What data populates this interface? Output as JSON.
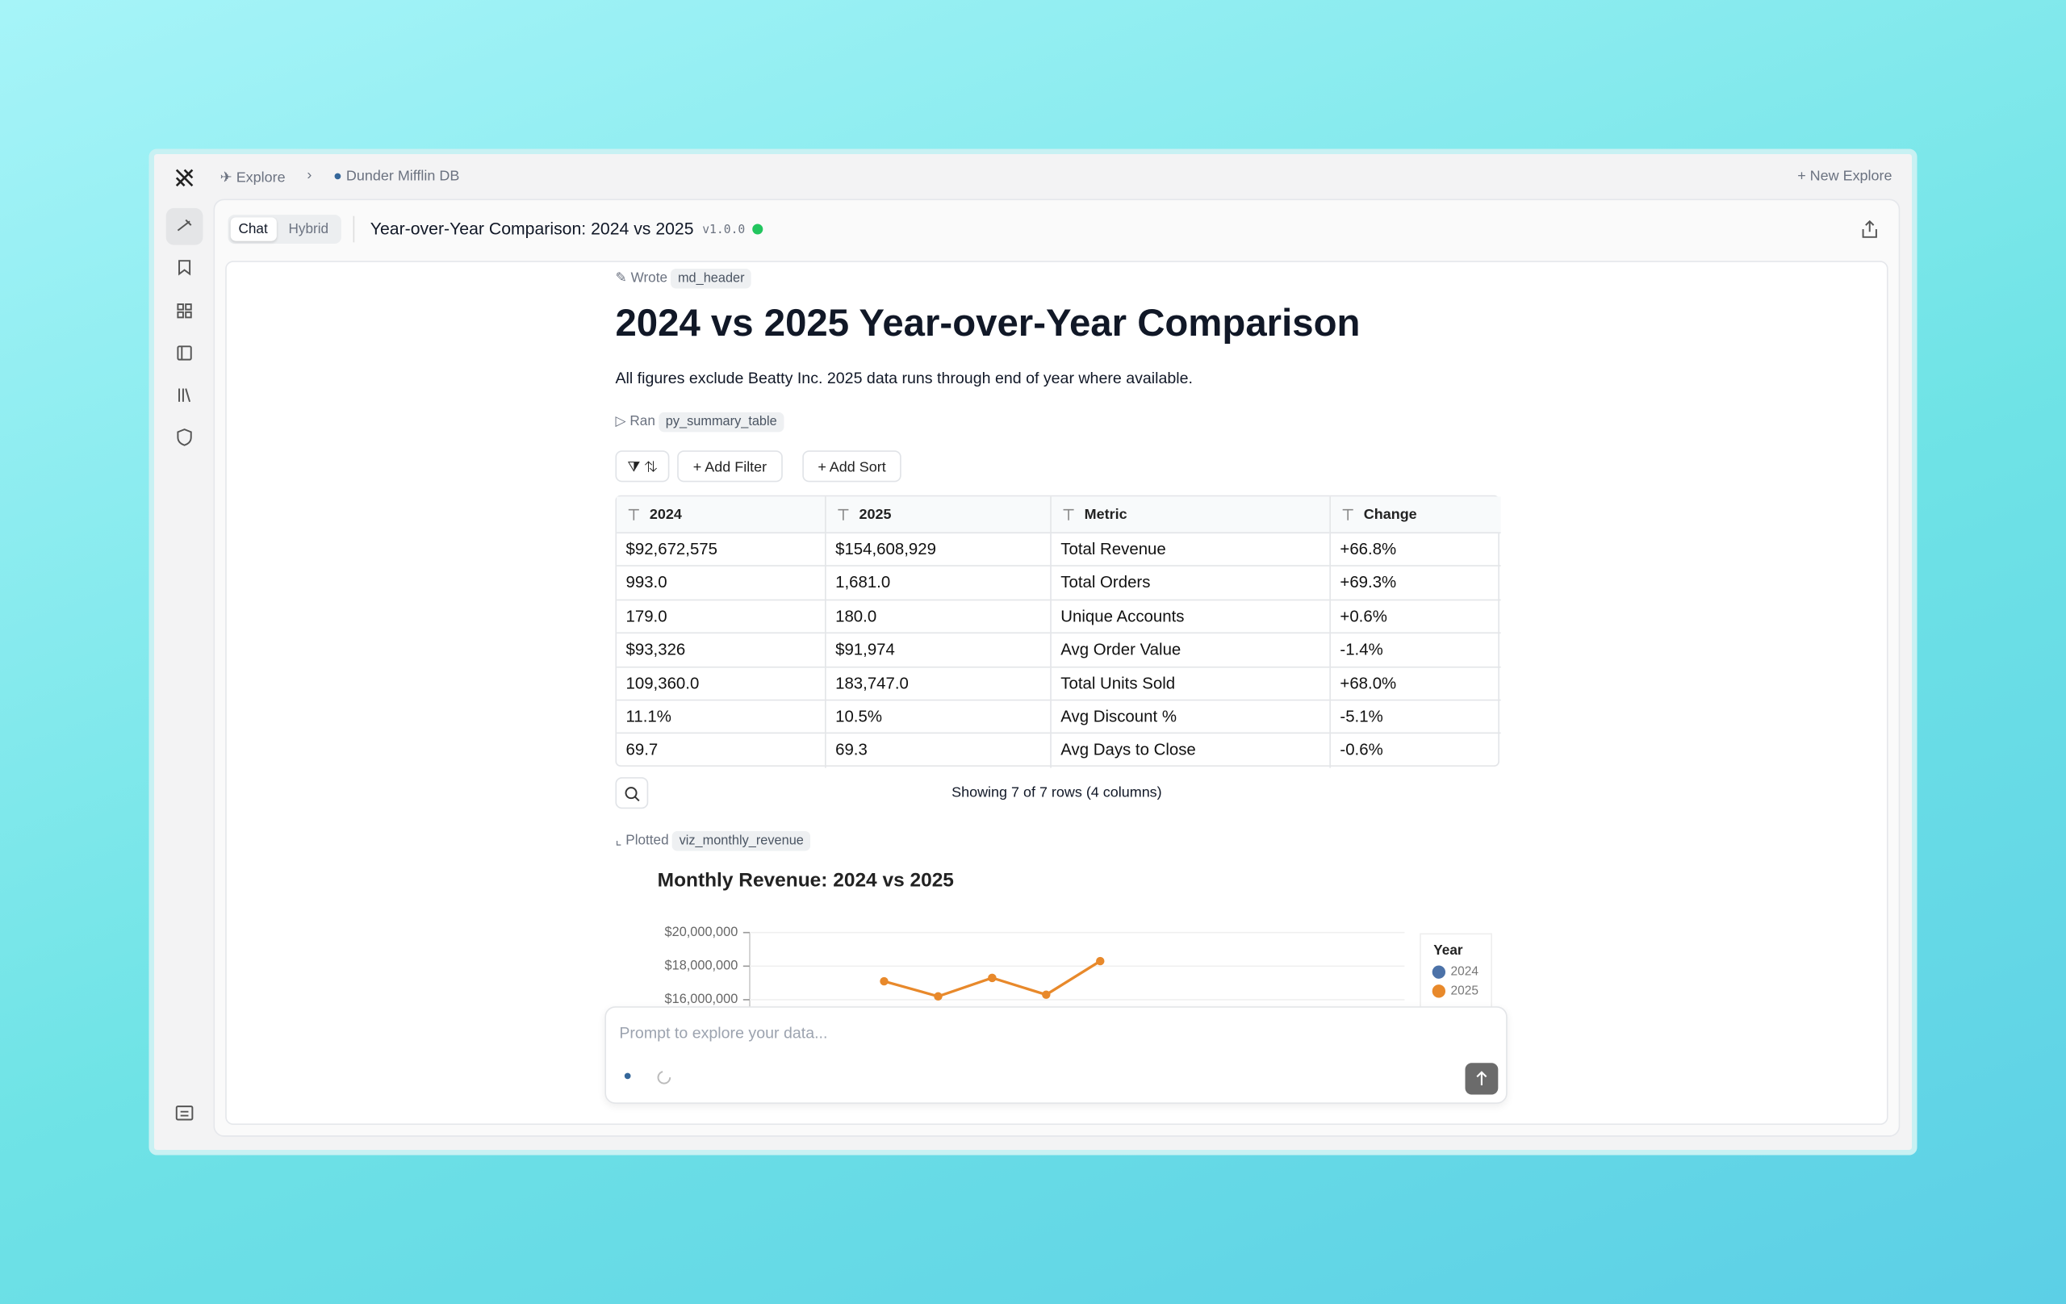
{
  "nav": {
    "breadcrumbs": [
      "Explore",
      "Dunder Mifflin DB"
    ],
    "new_explore": "New Explore"
  },
  "toolbar": {
    "tabs": [
      "Chat",
      "Hybrid"
    ],
    "title": "Year-over-Year Comparison: 2024 vs 2025",
    "version": "v1.0.0"
  },
  "cells": {
    "header_step": {
      "verb": "Wrote",
      "name": "md_header"
    },
    "heading": "2024 vs 2025 Year-over-Year Comparison",
    "paragraph": "All figures exclude Beatty Inc. 2025 data runs through end of year where available.",
    "table_step": {
      "verb": "Ran",
      "name": "py_summary_table"
    },
    "buttons": [
      "Add Filter",
      "Add Sort"
    ],
    "table": {
      "columns": [
        "2024",
        "2025",
        "Metric",
        "Change"
      ],
      "rows": [
        [
          "$92,672,575",
          "$154,608,929",
          "Total Revenue",
          "+66.8%"
        ],
        [
          "993.0",
          "1,681.0",
          "Total Orders",
          "+69.3%"
        ],
        [
          "179.0",
          "180.0",
          "Unique Accounts",
          "+0.6%"
        ],
        [
          "$93,326",
          "$91,974",
          "Avg Order Value",
          "-1.4%"
        ],
        [
          "109,360.0",
          "183,747.0",
          "Total Units Sold",
          "+68.0%"
        ],
        [
          "11.1%",
          "10.5%",
          "Avg Discount %",
          "-5.1%"
        ],
        [
          "69.7",
          "69.3",
          "Avg Days to Close",
          "-0.6%"
        ]
      ],
      "footer": "Showing 7 of 7 rows (4 columns)"
    },
    "chart_step": {
      "verb": "Plotted",
      "name": "viz_monthly_revenue"
    }
  },
  "chart_data": {
    "type": "line",
    "title": "Monthly Revenue: 2024 vs 2025",
    "legend_title": "Year",
    "legend": "top-right",
    "ylim": [
      14000000,
      20000000
    ],
    "yticks": [
      {
        "value": 16000000,
        "label": "$16,000,000"
      },
      {
        "value": 18000000,
        "label": "$18,000,000"
      },
      {
        "value": 20000000,
        "label": "$20,000,000"
      }
    ],
    "series": [
      {
        "name": "2024",
        "color": "#4c72a8",
        "values": [
          null,
          null,
          null,
          null,
          null,
          null,
          null,
          null,
          null,
          null,
          null,
          null
        ]
      },
      {
        "name": "2025",
        "color": "#e8892b",
        "values": [
          null,
          null,
          17100000,
          16200000,
          17300000,
          16300000,
          18300000,
          null,
          null,
          null,
          null,
          null
        ]
      }
    ]
  },
  "prompt": {
    "placeholder": "Prompt to explore your data..."
  }
}
